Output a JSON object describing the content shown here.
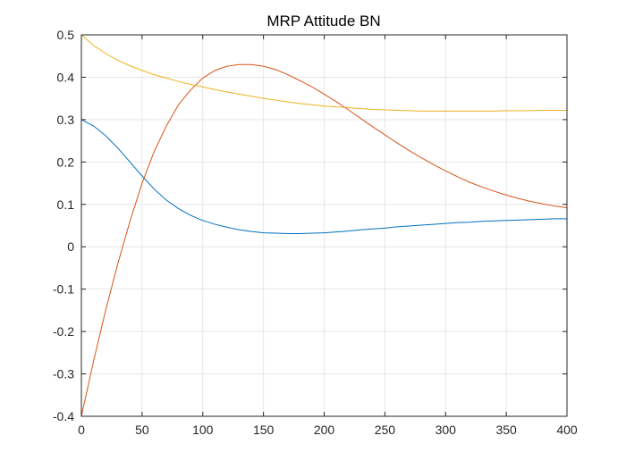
{
  "chart_data": {
    "type": "line",
    "title": "MRP Attitude BN",
    "xlabel": "",
    "ylabel": "",
    "xlim": [
      0,
      400
    ],
    "ylim": [
      -0.4,
      0.5
    ],
    "xticks": [
      0,
      50,
      100,
      150,
      200,
      250,
      300,
      350,
      400
    ],
    "yticks": [
      -0.4,
      -0.3,
      -0.2,
      -0.1,
      0,
      0.1,
      0.2,
      0.3,
      0.4,
      0.5
    ],
    "xtick_labels": [
      "0",
      "50",
      "100",
      "150",
      "200",
      "250",
      "300",
      "350",
      "400"
    ],
    "ytick_labels": [
      "-0.4",
      "-0.3",
      "-0.2",
      "-0.1",
      "0",
      "0.1",
      "0.2",
      "0.3",
      "0.4",
      "0.5"
    ],
    "grid": true,
    "series": [
      {
        "color": "#0072bd",
        "x": [
          0,
          10,
          20,
          30,
          40,
          50,
          60,
          70,
          80,
          90,
          100,
          110,
          120,
          130,
          140,
          150,
          160,
          170,
          180,
          190,
          200,
          210,
          220,
          230,
          240,
          250,
          260,
          270,
          280,
          290,
          300,
          310,
          320,
          330,
          340,
          350,
          360,
          370,
          380,
          390,
          400
        ],
        "y": [
          0.3,
          0.285,
          0.262,
          0.233,
          0.2,
          0.167,
          0.136,
          0.11,
          0.09,
          0.074,
          0.062,
          0.053,
          0.046,
          0.04,
          0.036,
          0.033,
          0.032,
          0.031,
          0.031,
          0.032,
          0.033,
          0.035,
          0.037,
          0.04,
          0.042,
          0.044,
          0.047,
          0.049,
          0.051,
          0.053,
          0.055,
          0.057,
          0.058,
          0.06,
          0.061,
          0.062,
          0.063,
          0.064,
          0.065,
          0.066,
          0.066
        ]
      },
      {
        "color": "#d95319",
        "x": [
          0,
          10,
          20,
          30,
          40,
          50,
          60,
          70,
          80,
          90,
          100,
          110,
          120,
          130,
          140,
          150,
          160,
          170,
          180,
          190,
          200,
          210,
          220,
          230,
          240,
          250,
          260,
          270,
          280,
          290,
          300,
          310,
          320,
          330,
          340,
          350,
          360,
          370,
          380,
          390,
          400
        ],
        "y": [
          -0.4,
          -0.27,
          -0.15,
          -0.04,
          0.06,
          0.15,
          0.225,
          0.285,
          0.335,
          0.37,
          0.398,
          0.416,
          0.426,
          0.43,
          0.43,
          0.426,
          0.418,
          0.406,
          0.392,
          0.377,
          0.36,
          0.342,
          0.323,
          0.303,
          0.283,
          0.264,
          0.245,
          0.227,
          0.21,
          0.194,
          0.179,
          0.165,
          0.152,
          0.141,
          0.131,
          0.122,
          0.114,
          0.107,
          0.101,
          0.096,
          0.092
        ]
      },
      {
        "color": "#edb120",
        "x": [
          0,
          10,
          20,
          30,
          40,
          50,
          60,
          70,
          80,
          90,
          100,
          110,
          120,
          130,
          140,
          150,
          160,
          170,
          180,
          190,
          200,
          210,
          220,
          230,
          240,
          250,
          260,
          270,
          280,
          290,
          300,
          310,
          320,
          330,
          340,
          350,
          360,
          370,
          380,
          390,
          400
        ],
        "y": [
          0.5,
          0.475,
          0.456,
          0.44,
          0.427,
          0.416,
          0.406,
          0.398,
          0.39,
          0.383,
          0.377,
          0.371,
          0.365,
          0.36,
          0.355,
          0.35,
          0.346,
          0.342,
          0.338,
          0.335,
          0.332,
          0.33,
          0.328,
          0.326,
          0.324,
          0.323,
          0.322,
          0.321,
          0.32,
          0.32,
          0.32,
          0.32,
          0.32,
          0.32,
          0.32,
          0.321,
          0.321,
          0.321,
          0.322,
          0.322,
          0.322
        ]
      }
    ]
  }
}
